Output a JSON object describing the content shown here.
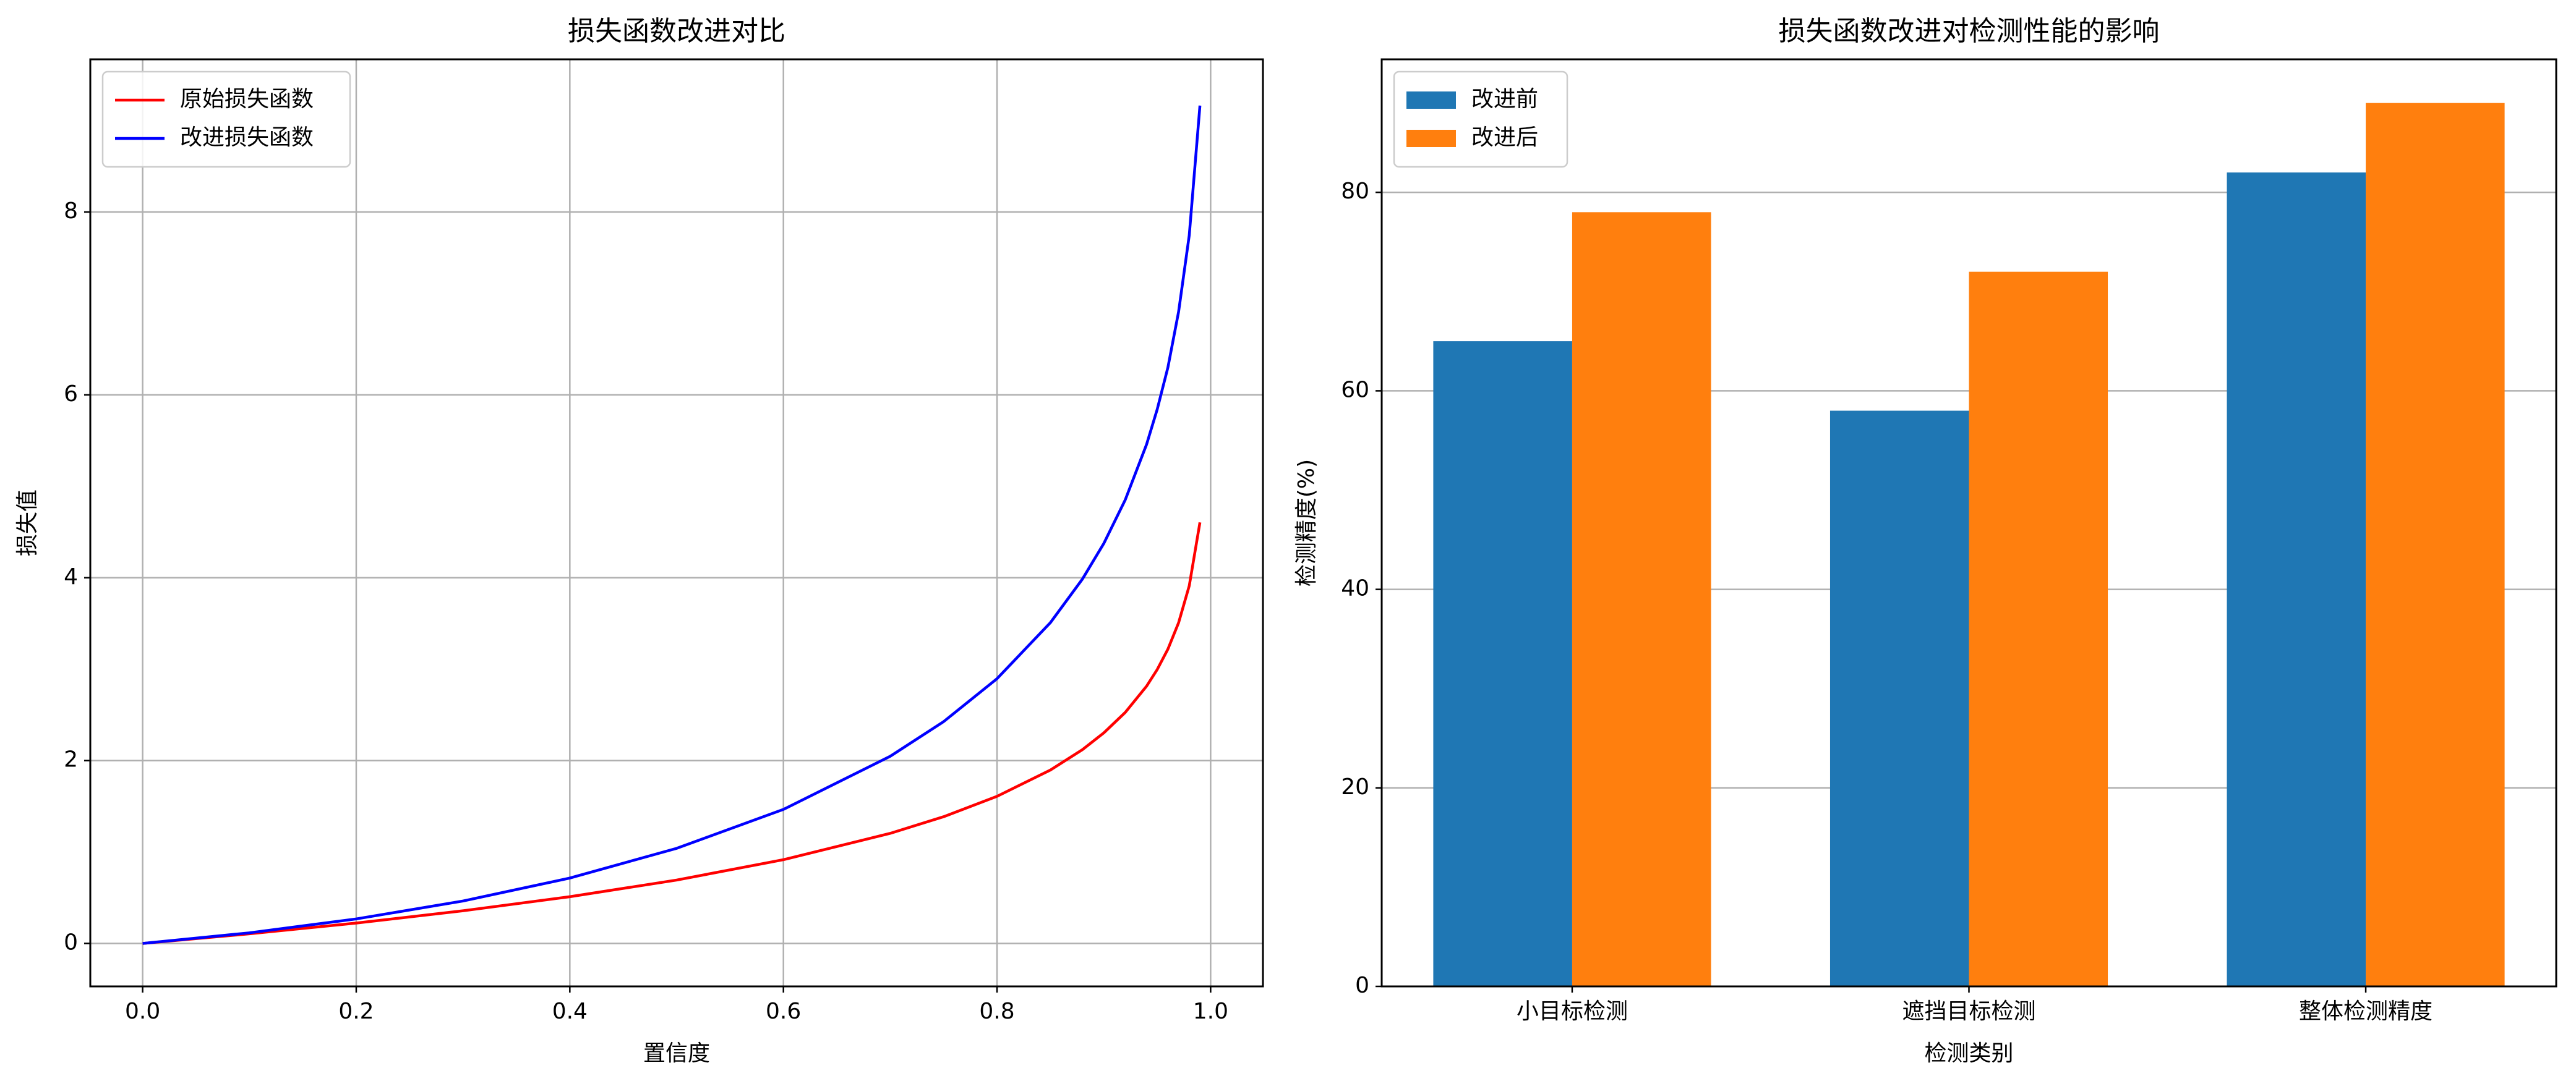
{
  "chart_data": [
    {
      "type": "line",
      "title": "损失函数改进对比",
      "xlabel": "置信度",
      "ylabel": "损失值",
      "x": [
        0,
        0.1,
        0.2,
        0.3,
        0.4,
        0.5,
        0.6,
        0.7,
        0.75,
        0.8,
        0.85,
        0.88,
        0.9,
        0.92,
        0.94,
        0.95,
        0.96,
        0.97,
        0.98,
        0.99
      ],
      "series": [
        {
          "name": "原始损失函数",
          "color": "#ff0000",
          "values": [
            0,
            0.105,
            0.223,
            0.357,
            0.511,
            0.693,
            0.916,
            1.204,
            1.386,
            1.609,
            1.897,
            2.12,
            2.303,
            2.526,
            2.813,
            2.996,
            3.219,
            3.507,
            3.912,
            4.605
          ]
        },
        {
          "name": "改进损失函数",
          "color": "#0000ff",
          "values": [
            0,
            0.116,
            0.268,
            0.464,
            0.715,
            1.04,
            1.466,
            2.047,
            2.426,
            2.896,
            3.509,
            3.986,
            4.375,
            4.85,
            5.457,
            5.842,
            6.3,
            6.908,
            7.746,
            9.164
          ]
        }
      ],
      "xlim": [
        -0.049,
        1.049
      ],
      "xticks": [
        {
          "value": 0,
          "label": "0.0"
        },
        0.2,
        0.4,
        0.6,
        0.8,
        {
          "value": 1,
          "label": "1.0"
        }
      ],
      "ylim": [
        -0.47,
        9.67
      ],
      "yticks": [
        0,
        2,
        4,
        6,
        8
      ],
      "grid": true,
      "legend": "upper left"
    },
    {
      "type": "bar",
      "title": "损失函数改进对检测性能的影响",
      "xlabel": "检测类别",
      "ylabel": "检测精度(%)",
      "categories": [
        "小目标检测",
        "遮挡目标检测",
        "整体检测精度"
      ],
      "series": [
        {
          "name": "改进前",
          "color": "#1f77b4",
          "values": [
            65,
            58,
            82
          ]
        },
        {
          "name": "改进后",
          "color": "#ff7f0e",
          "values": [
            78,
            72,
            89
          ]
        }
      ],
      "ylim": [
        0,
        93.4
      ],
      "yticks": [
        0,
        20,
        40,
        60,
        80
      ],
      "grid": true,
      "legend": "upper left"
    }
  ]
}
